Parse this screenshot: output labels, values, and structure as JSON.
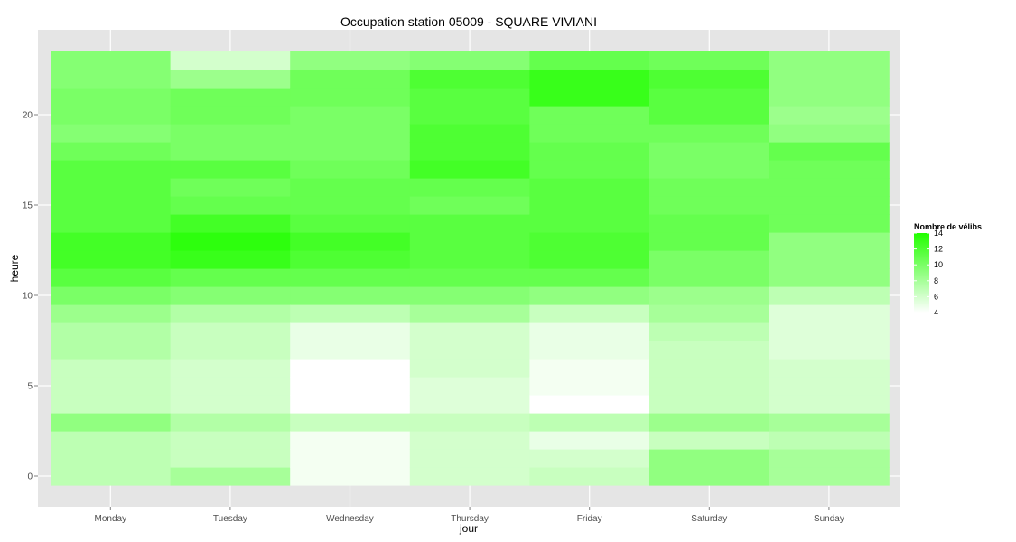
{
  "chart_data": {
    "type": "heatmap",
    "title": "Occupation station 05009 - SQUARE VIVIANI",
    "xlabel": "jour",
    "ylabel": "heure",
    "x_categories": [
      "Monday",
      "Tuesday",
      "Wednesday",
      "Thursday",
      "Friday",
      "Saturday",
      "Sunday"
    ],
    "y_hours": [
      0,
      1,
      2,
      3,
      4,
      5,
      6,
      7,
      8,
      9,
      10,
      11,
      12,
      13,
      14,
      15,
      16,
      17,
      18,
      19,
      20,
      21,
      22,
      23
    ],
    "y_ticks": [
      0,
      5,
      10,
      15,
      20
    ],
    "ylim": [
      -0.5,
      23.5
    ],
    "grid": true,
    "legend": {
      "title": "Nombre de vélibs",
      "placement": "right",
      "min": 4,
      "max": 14,
      "ticks": [
        4,
        6,
        8,
        10,
        12,
        14
      ],
      "low_color": "#ffffff",
      "high_color": "#22ff00"
    },
    "values": {
      "Monday": [
        7.0,
        7.0,
        7.0,
        9.0,
        6.5,
        6.5,
        6.5,
        7.5,
        7.5,
        8.5,
        10.0,
        11.5,
        12.5,
        12.5,
        11.5,
        11.5,
        11.5,
        11.5,
        10.5,
        9.5,
        10.0,
        10.0,
        9.5,
        9.5
      ],
      "Tuesday": [
        8.0,
        6.5,
        6.5,
        7.5,
        6.0,
        6.0,
        6.0,
        6.5,
        6.5,
        7.5,
        9.5,
        11.0,
        13.0,
        13.5,
        12.5,
        11.0,
        10.5,
        11.5,
        10.0,
        10.0,
        10.5,
        10.5,
        8.5,
        6.0
      ],
      "Wednesday": [
        4.5,
        4.5,
        4.5,
        6.5,
        4.0,
        4.0,
        4.0,
        5.0,
        5.0,
        7.0,
        9.5,
        11.0,
        12.0,
        12.5,
        11.5,
        11.0,
        11.0,
        10.5,
        10.0,
        10.0,
        10.0,
        10.5,
        10.5,
        9.0
      ],
      "Thursday": [
        6.0,
        6.0,
        6.0,
        6.5,
        5.5,
        5.5,
        6.0,
        6.0,
        6.0,
        8.0,
        9.5,
        11.0,
        11.5,
        11.5,
        11.5,
        10.5,
        11.0,
        12.5,
        12.0,
        12.0,
        11.5,
        11.5,
        12.0,
        9.5
      ],
      "Friday": [
        6.5,
        6.0,
        5.0,
        7.0,
        4.0,
        4.5,
        4.5,
        5.0,
        5.0,
        6.5,
        9.0,
        11.0,
        12.0,
        12.0,
        11.5,
        11.5,
        11.5,
        11.0,
        11.0,
        10.5,
        10.5,
        13.0,
        13.0,
        11.0
      ],
      "Saturday": [
        9.0,
        9.0,
        6.5,
        8.5,
        6.5,
        6.5,
        6.5,
        6.5,
        7.0,
        8.0,
        8.5,
        10.0,
        10.0,
        11.0,
        11.0,
        10.5,
        10.5,
        10.0,
        10.0,
        10.5,
        11.5,
        11.5,
        12.0,
        10.5
      ],
      "Sunday": [
        8.0,
        8.0,
        7.0,
        8.0,
        6.0,
        6.0,
        6.0,
        5.5,
        5.5,
        5.5,
        7.0,
        9.0,
        9.0,
        9.0,
        10.5,
        10.5,
        10.5,
        10.5,
        11.0,
        9.0,
        8.5,
        9.0,
        9.0,
        9.0
      ]
    }
  }
}
